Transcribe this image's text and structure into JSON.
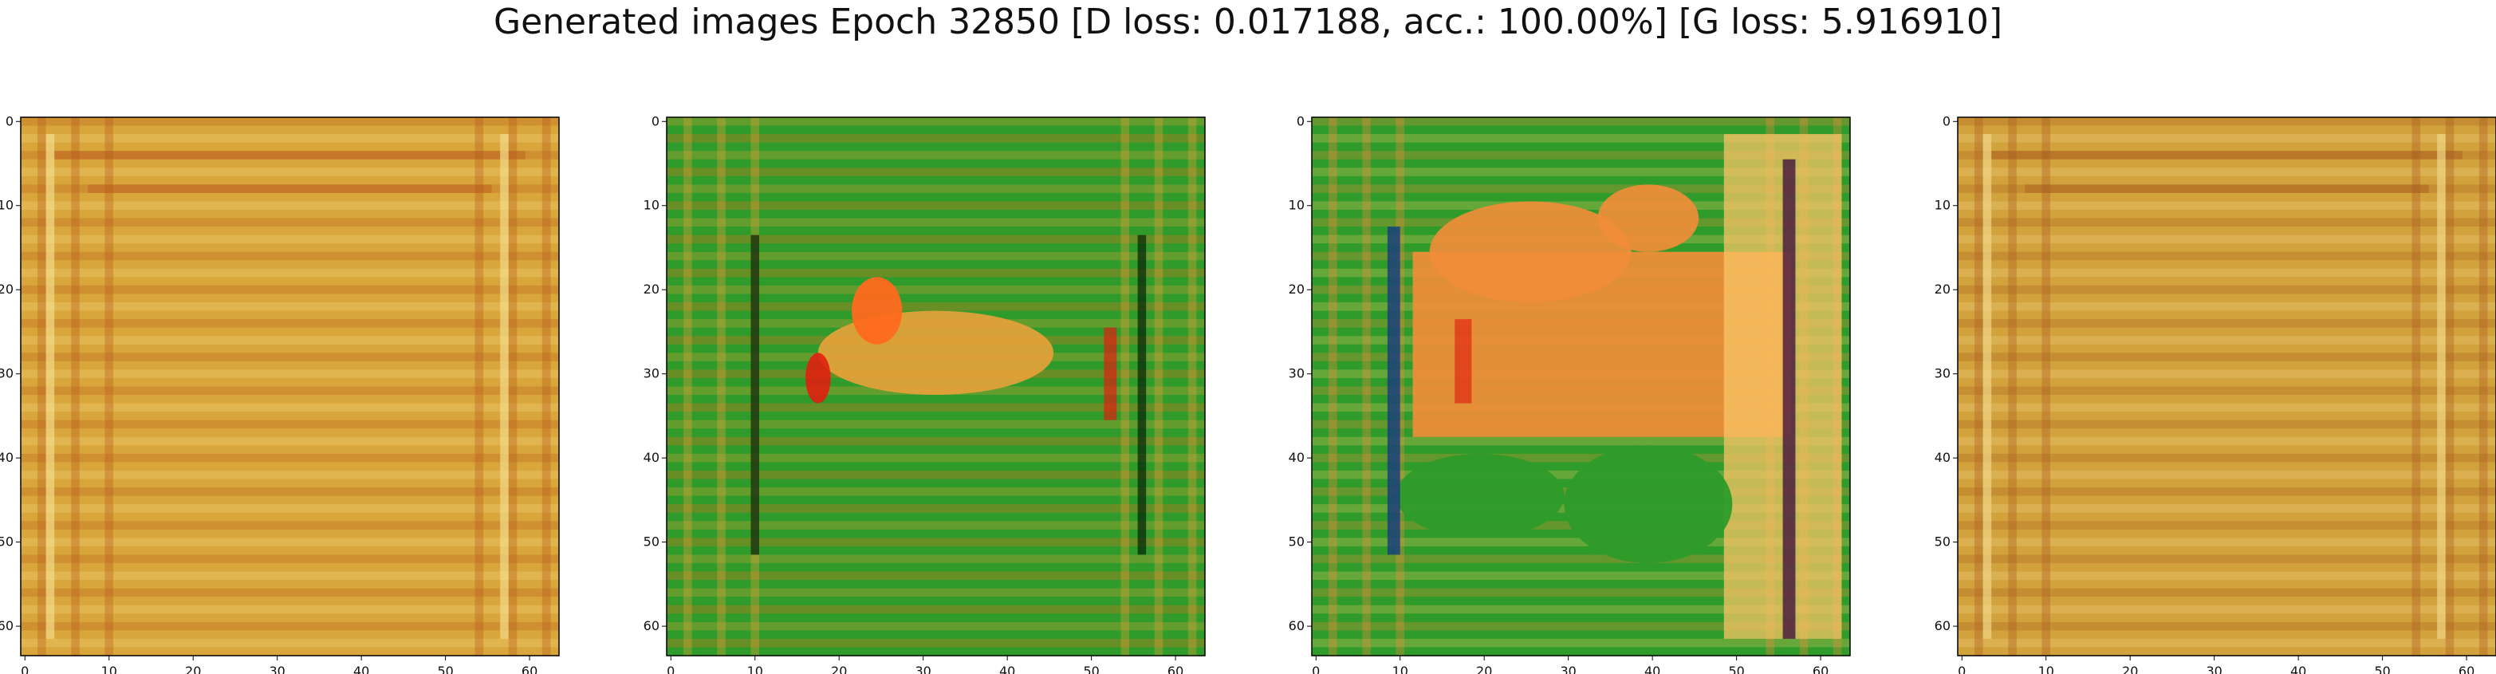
{
  "figure": {
    "title": "Generated images Epoch 32850 [D loss: 0.017188, acc.: 100.00%] [G loss: 5.916910]"
  },
  "axes_ticks": {
    "x": [
      "0",
      "10",
      "20",
      "30",
      "40",
      "50",
      "60"
    ],
    "y": [
      "0",
      "10",
      "20",
      "30",
      "40",
      "50",
      "60"
    ]
  },
  "panels": [
    {
      "id": "image-1",
      "description": "orange-yellow striped square frame pattern",
      "base_color": "#d8a63a",
      "accent_color": "#b85a1e",
      "light_color": "#f3dc8a"
    },
    {
      "id": "image-2",
      "description": "green field with orange and red blob in center",
      "base_color": "#2e9b2a",
      "accent_color": "#e9a23a",
      "light_color": "#ff6a1e"
    },
    {
      "id": "image-3",
      "description": "green border with large orange region",
      "base_color": "#2e9b2a",
      "accent_color": "#f08d3a",
      "light_color": "#f7c466"
    },
    {
      "id": "image-4",
      "description": "orange-yellow striped square frame pattern",
      "base_color": "#d2a23c",
      "accent_color": "#a85a1e",
      "light_color": "#f0d588"
    }
  ]
}
